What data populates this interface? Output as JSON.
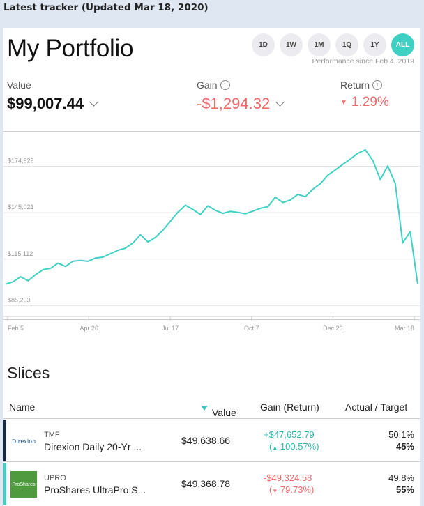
{
  "page_title": "Latest tracker (Updated Mar 18, 2020)",
  "portfolio": {
    "title": "My Portfolio",
    "ranges": [
      "1D",
      "1W",
      "1M",
      "1Q",
      "1Y",
      "ALL"
    ],
    "active_range": "ALL",
    "performance_note": "Performance since Feb 4, 2019",
    "value_label": "Value",
    "value": "$99,007.44",
    "gain_label": "Gain",
    "gain": "-$1,294.32",
    "return_label": "Return",
    "return_value": "1.29%",
    "colors": {
      "accent": "#3fd0c4",
      "positive": "#2fb8ad",
      "negative": "#ee6a6a"
    }
  },
  "chart_data": {
    "type": "line",
    "y_tick_labels": [
      "$174,929",
      "$145,021",
      "$115,112",
      "$85,203"
    ],
    "y_ticks": [
      174929,
      145021,
      115112,
      85203
    ],
    "x_tick_labels": [
      "Feb 5",
      "Apr 26",
      "Jul 17",
      "Oct 7",
      "Dec 26",
      "Mar 18"
    ],
    "ylim": [
      80000,
      194000
    ],
    "series": [
      {
        "values": [
          99000,
          100500,
          103800,
          101200,
          105100,
          108300,
          109200,
          112500,
          110400,
          113800,
          114200,
          113700,
          115800,
          116400,
          118600,
          120800,
          122200,
          125500,
          130800,
          126200,
          129100,
          133800,
          139500,
          145300,
          149800,
          147100,
          143800,
          149400,
          146500,
          144600,
          145900,
          145200,
          144300,
          146000,
          147800,
          148900,
          155000,
          151600,
          153200,
          156800,
          155300,
          160100,
          163600,
          169200,
          172500,
          176100,
          179500,
          183200,
          185500,
          178800,
          166400,
          175100,
          163800,
          125500,
          132800,
          99007
        ]
      }
    ]
  },
  "slices": {
    "title": "Slices",
    "headers": {
      "name": "Name",
      "value": "Value",
      "gain": "Gain (Return)",
      "alloc": "Actual / Target"
    },
    "rows": [
      {
        "logo_text": "Direxion",
        "ticker": "TMF",
        "name": "Direxion Daily 20-Yr ...",
        "value": "$49,638.66",
        "gain": "+$47,652.79",
        "return": "100.57%",
        "actual": "50.1%",
        "target": "45%"
      },
      {
        "logo_text": "ProShares",
        "ticker": "UPRO",
        "name": "ProShares UltraPro S...",
        "value": "$49,368.78",
        "gain": "-$49,324.58",
        "return": "79.73%",
        "actual": "49.8%",
        "target": "55%"
      }
    ]
  }
}
